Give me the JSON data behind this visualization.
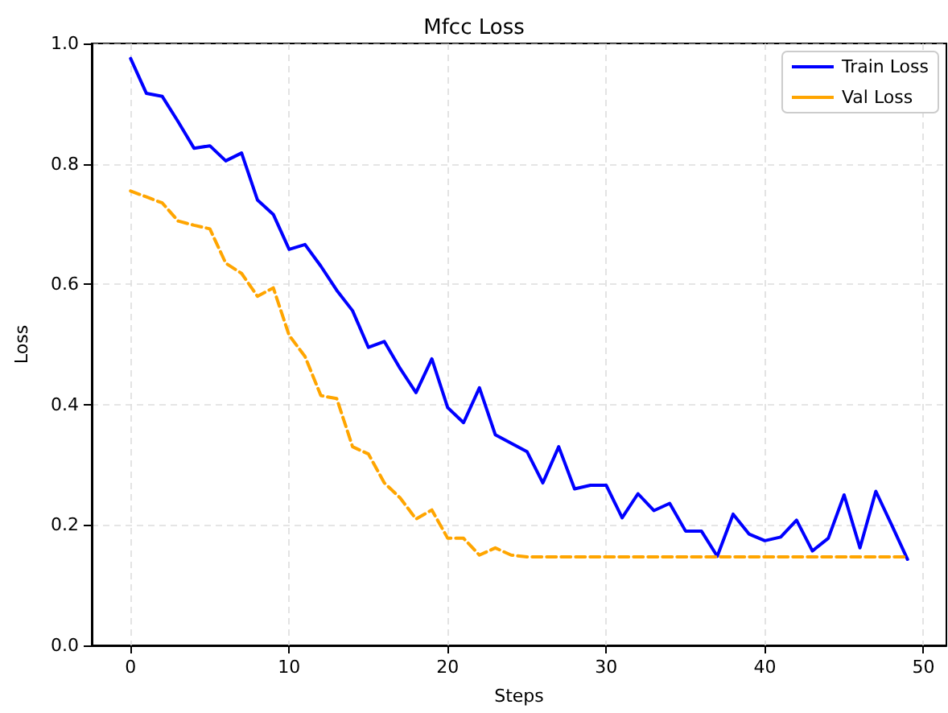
{
  "chart_data": {
    "type": "line",
    "title": "Mfcc Loss",
    "xlabel": "Steps",
    "ylabel": "Loss",
    "legend": "top right",
    "grid": true,
    "x": [
      0,
      1,
      2,
      3,
      4,
      5,
      6,
      7,
      8,
      9,
      10,
      11,
      12,
      13,
      14,
      15,
      16,
      17,
      18,
      19,
      20,
      21,
      22,
      23,
      24,
      25,
      26,
      27,
      28,
      29,
      30,
      31,
      32,
      33,
      34,
      35,
      36,
      37,
      38,
      39,
      40,
      41,
      42,
      43,
      44,
      45,
      46,
      47,
      48,
      49
    ],
    "xlim": [
      -2.45,
      51.45
    ],
    "xticks": [
      0,
      10,
      20,
      30,
      40,
      50
    ],
    "ylim": [
      0,
      1
    ],
    "yticks": [
      {
        "value": 0,
        "label": "0.0"
      },
      0.2,
      0.4,
      0.6,
      0.8,
      {
        "value": 1,
        "label": "1.0"
      }
    ],
    "series": [
      {
        "name": "Train Loss",
        "color": "#0000ff",
        "line_style": "solid",
        "values": [
          0.975,
          0.917,
          0.912,
          0.87,
          0.826,
          0.83,
          0.805,
          0.818,
          0.74,
          0.716,
          0.658,
          0.666,
          0.63,
          0.59,
          0.556,
          0.495,
          0.505,
          0.46,
          0.42,
          0.476,
          0.395,
          0.37,
          0.428,
          0.35,
          0.336,
          0.322,
          0.27,
          0.33,
          0.26,
          0.266,
          0.266,
          0.212,
          0.252,
          0.224,
          0.236,
          0.19,
          0.19,
          0.148,
          0.218,
          0.185,
          0.174,
          0.18,
          0.208,
          0.157,
          0.178,
          0.25,
          0.162,
          0.256,
          0.2,
          0.143
        ]
      },
      {
        "name": "Val Loss",
        "color": "#ffa500",
        "line_style": "dashed",
        "values": [
          0.755,
          0.745,
          0.735,
          0.705,
          0.698,
          0.692,
          0.635,
          0.618,
          0.58,
          0.594,
          0.515,
          0.48,
          0.415,
          0.41,
          0.33,
          0.318,
          0.27,
          0.245,
          0.21,
          0.225,
          0.178,
          0.178,
          0.15,
          0.162,
          0.15,
          0.147,
          0.147,
          0.147,
          0.147,
          0.147,
          0.147,
          0.147,
          0.147,
          0.147,
          0.147,
          0.147,
          0.147,
          0.147,
          0.147,
          0.147,
          0.147,
          0.147,
          0.147,
          0.147,
          0.147,
          0.147,
          0.147,
          0.147,
          0.147,
          0.147
        ]
      }
    ]
  }
}
